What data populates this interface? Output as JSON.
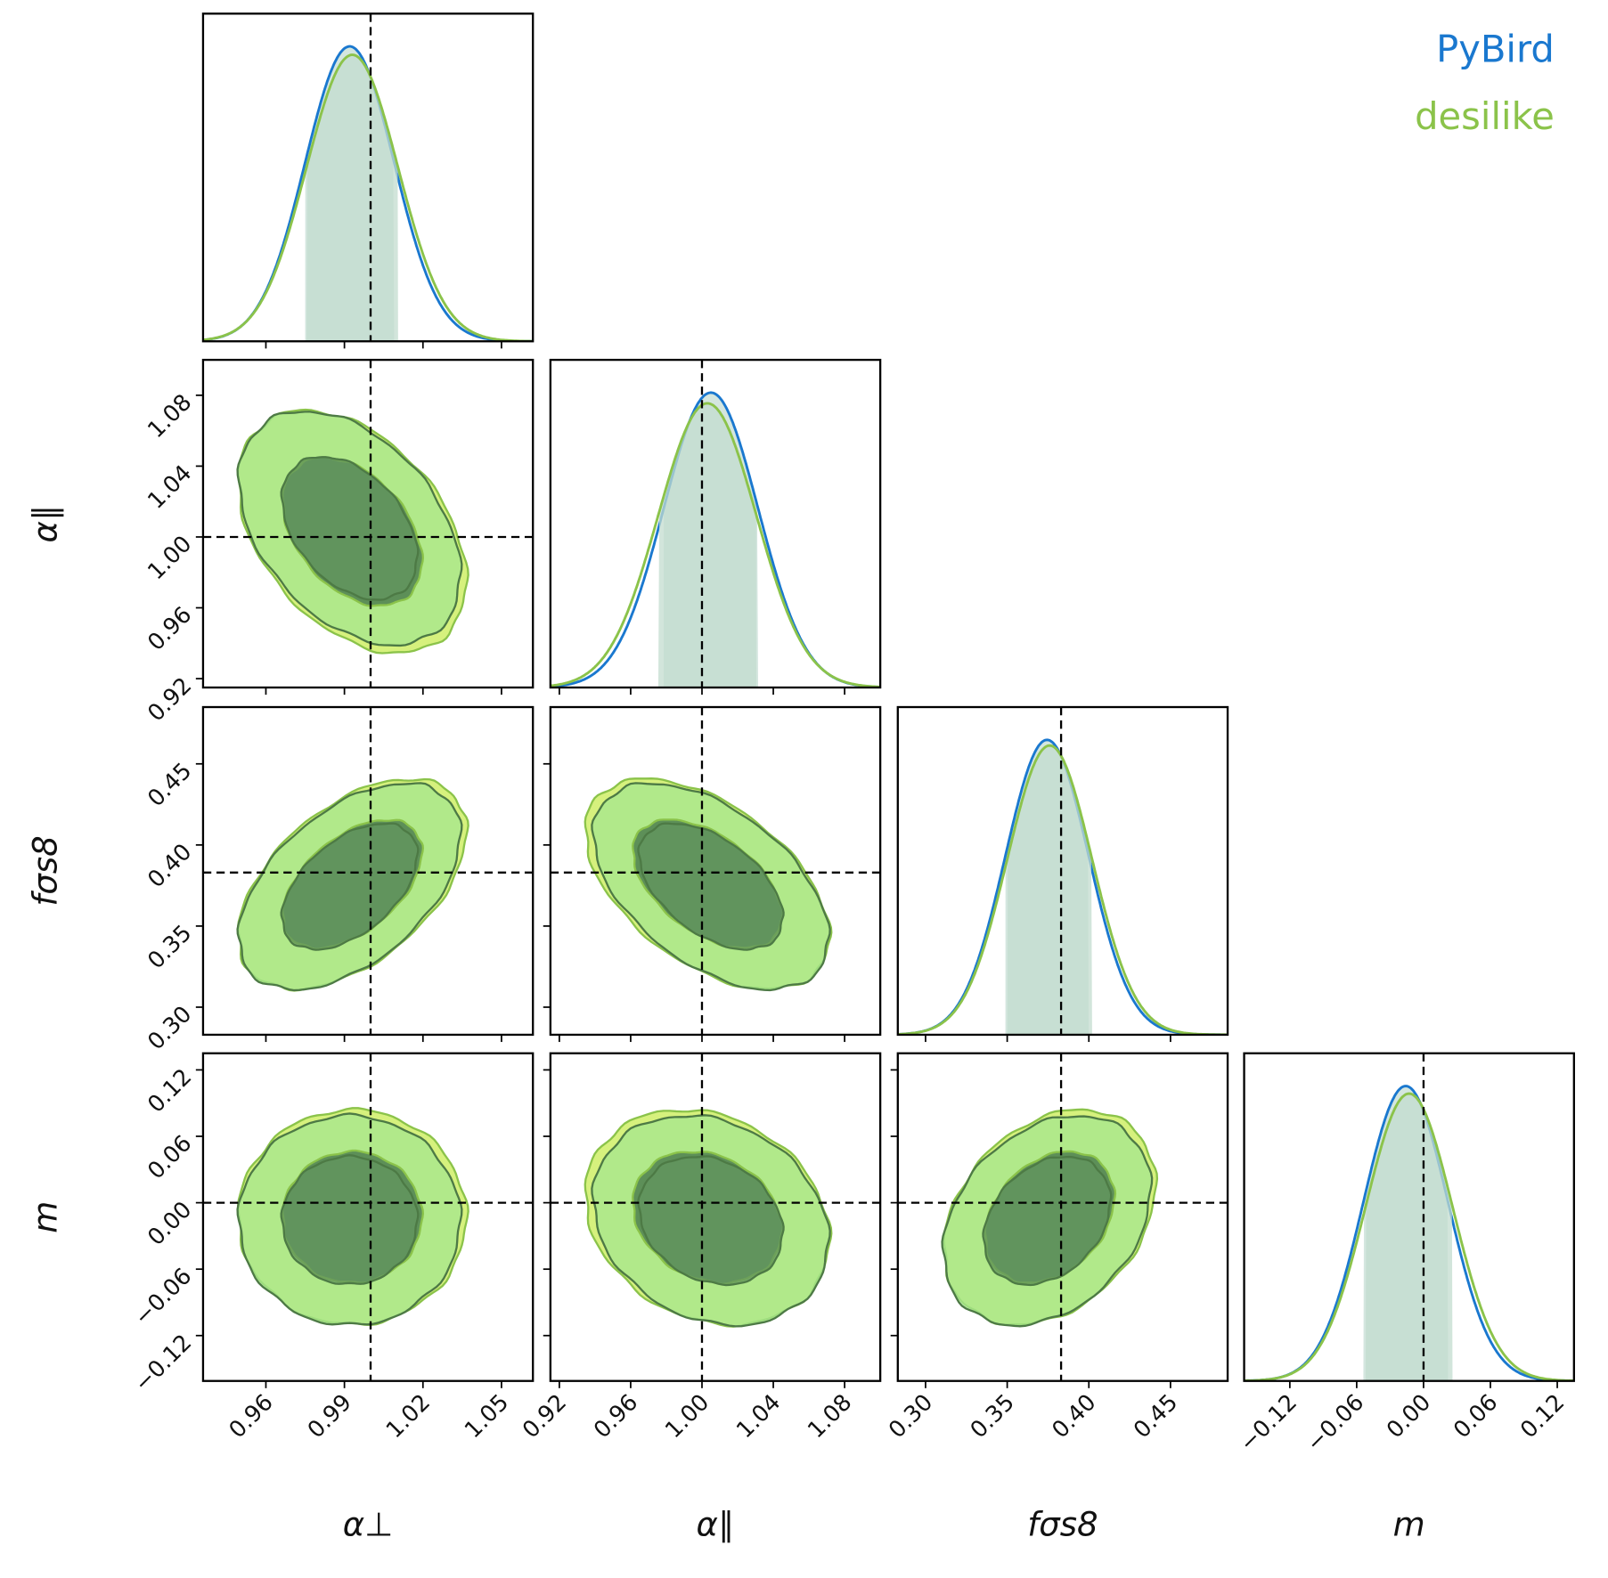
{
  "chart_data": {
    "type": "corner",
    "legend_loc": "upper right",
    "series": [
      {
        "name": "PyBird",
        "color": "#1a78cf",
        "contour_colors": [
          "#63955f",
          "#a4e58f"
        ],
        "band_color": "#c6ddd4",
        "mean": [
          0.992,
          1.005,
          0.3744,
          -0.016
        ],
        "sigma": [
          0.017,
          0.0265,
          0.0255,
          0.038
        ],
        "corr": [
          [
            1,
            -0.4,
            0.5,
            0
          ],
          [
            -0.4,
            1,
            -0.5,
            -0.2
          ],
          [
            0.5,
            -0.5,
            1,
            0.3
          ],
          [
            0,
            -0.2,
            0.3,
            1
          ]
        ]
      },
      {
        "name": "desilike",
        "color": "#8bc34a",
        "contour_colors": [
          "#5d8f58",
          "#d6f17d"
        ],
        "band_color": "#c3dccf",
        "mean": [
          0.993,
          1.003,
          0.376,
          -0.013
        ],
        "sigma": [
          0.0175,
          0.0275,
          0.026,
          0.039
        ],
        "corr": [
          [
            1,
            -0.4,
            0.5,
            0
          ],
          [
            -0.4,
            1,
            -0.5,
            -0.2
          ],
          [
            0.5,
            -0.5,
            1,
            0.3
          ],
          [
            0,
            -0.2,
            0.3,
            1
          ]
        ]
      }
    ],
    "params": [
      {
        "label": "α⊥",
        "lim": [
          0.936,
          1.062
        ],
        "truth": 1.0,
        "ticks": [
          0.96,
          0.99,
          1.02,
          1.05
        ]
      },
      {
        "label": "α∥",
        "lim": [
          0.915,
          1.1
        ],
        "truth": 1.0,
        "ticks": [
          0.92,
          0.96,
          {
            "value": 1.0,
            "label": "1.00"
          },
          1.04,
          1.08
        ]
      },
      {
        "label": "fσs8",
        "lim": [
          0.283,
          0.485
        ],
        "truth": 0.383,
        "ticks": [
          {
            "value": 0.3,
            "label": "0.30"
          },
          0.35,
          {
            "value": 0.4,
            "label": "0.40"
          },
          0.45
        ]
      },
      {
        "label": "m",
        "lim": [
          -0.161,
          0.135
        ],
        "truth": 0,
        "ticks": [
          {
            "value": -0.12,
            "label": "−0.12"
          },
          {
            "value": -0.06,
            "label": "−0.06"
          },
          {
            "value": 0,
            "label": "0.00"
          },
          0.06,
          0.12
        ]
      }
    ]
  }
}
